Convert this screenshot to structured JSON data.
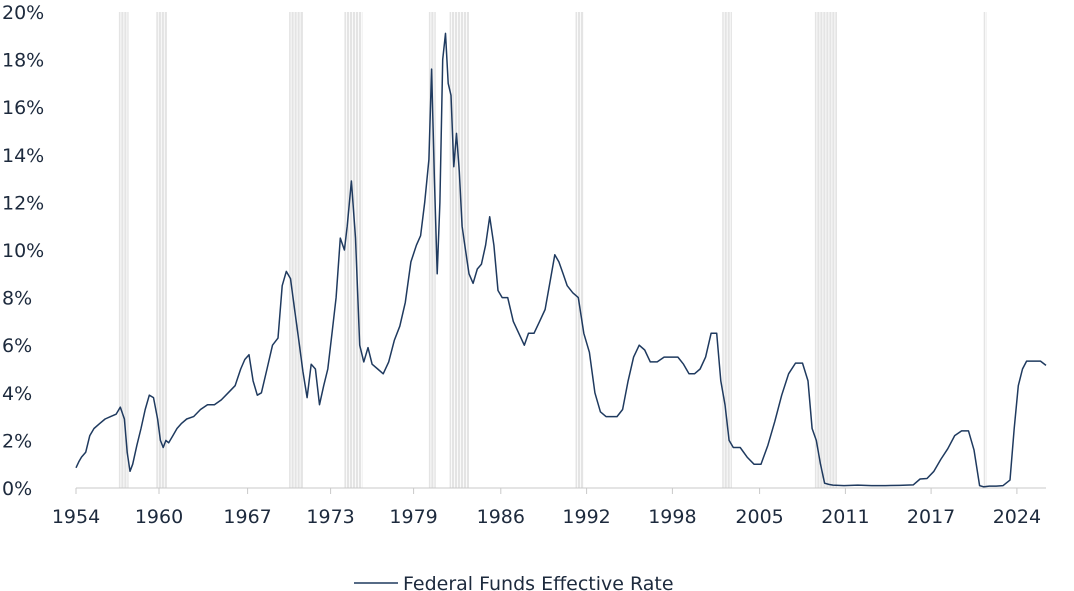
{
  "chart_data": {
    "type": "line",
    "title": "",
    "xlabel": "",
    "ylabel": "",
    "ylim": [
      0,
      20
    ],
    "xlim": [
      1954.5,
      2024.6
    ],
    "y_ticks": [
      0,
      2,
      4,
      6,
      8,
      10,
      12,
      14,
      16,
      18,
      20
    ],
    "y_tick_labels": [
      "0%",
      "2%",
      "4%",
      "6%",
      "8%",
      "10%",
      "12%",
      "14%",
      "16%",
      "18%",
      "20%"
    ],
    "x_tick_labels": [
      "1954",
      "1960",
      "1967",
      "1973",
      "1979",
      "1986",
      "1992",
      "1998",
      "2005",
      "2011",
      "2017",
      "2024"
    ],
    "x_tick_values": [
      1954.5,
      1960.5,
      1966.9,
      1972.9,
      1978.9,
      1985.2,
      1991.4,
      1997.6,
      2003.9,
      2010.1,
      2016.3,
      2022.5
    ],
    "recessions": [
      [
        1957.6,
        1958.3
      ],
      [
        1960.3,
        1961.1
      ],
      [
        1969.9,
        1970.9
      ],
      [
        1973.9,
        1975.2
      ],
      [
        1980.0,
        1980.5
      ],
      [
        1981.5,
        1982.9
      ],
      [
        1990.6,
        1991.2
      ],
      [
        2001.2,
        2001.9
      ],
      [
        2007.9,
        2009.5
      ],
      [
        2020.1,
        2020.3
      ]
    ],
    "legend": {
      "position": "bottom-center"
    },
    "series": [
      {
        "name": "Federal Funds Effective Rate",
        "color": "#1f3a5f",
        "x": [
          1954.5,
          1954.7,
          1954.9,
          1955.2,
          1955.5,
          1955.8,
          1956.2,
          1956.6,
          1957.0,
          1957.4,
          1957.7,
          1958.0,
          1958.2,
          1958.4,
          1958.6,
          1958.9,
          1959.2,
          1959.5,
          1959.8,
          1960.1,
          1960.4,
          1960.6,
          1960.8,
          1961.0,
          1961.2,
          1961.5,
          1961.8,
          1962.1,
          1962.5,
          1963.0,
          1963.5,
          1964.0,
          1964.5,
          1965.0,
          1965.5,
          1966.0,
          1966.4,
          1966.7,
          1967.0,
          1967.3,
          1967.6,
          1967.9,
          1968.3,
          1968.7,
          1969.1,
          1969.4,
          1969.7,
          1970.0,
          1970.3,
          1970.6,
          1970.9,
          1971.2,
          1971.5,
          1971.8,
          1972.1,
          1972.4,
          1972.7,
          1973.0,
          1973.3,
          1973.6,
          1973.9,
          1974.1,
          1974.4,
          1974.7,
          1975.0,
          1975.3,
          1975.6,
          1975.9,
          1976.3,
          1976.7,
          1977.1,
          1977.5,
          1977.9,
          1978.3,
          1978.7,
          1979.1,
          1979.4,
          1979.7,
          1980.0,
          1980.2,
          1980.4,
          1980.6,
          1980.8,
          1981.0,
          1981.2,
          1981.4,
          1981.6,
          1981.8,
          1982.0,
          1982.2,
          1982.4,
          1982.6,
          1982.9,
          1983.2,
          1983.5,
          1983.8,
          1984.1,
          1984.4,
          1984.7,
          1985.0,
          1985.3,
          1985.7,
          1986.1,
          1986.5,
          1986.9,
          1987.2,
          1987.6,
          1988.0,
          1988.4,
          1988.8,
          1989.1,
          1989.4,
          1989.7,
          1990.0,
          1990.4,
          1990.8,
          1991.2,
          1991.6,
          1992.0,
          1992.4,
          1992.8,
          1993.2,
          1993.6,
          1994.0,
          1994.4,
          1994.8,
          1995.2,
          1995.6,
          1996.0,
          1996.5,
          1997.0,
          1997.5,
          1998.0,
          1998.4,
          1998.8,
          1999.2,
          1999.6,
          2000.0,
          2000.4,
          2000.8,
          2001.1,
          2001.4,
          2001.7,
          2002.0,
          2002.5,
          2003.0,
          2003.5,
          2004.0,
          2004.5,
          2005.0,
          2005.5,
          2006.0,
          2006.5,
          2007.0,
          2007.4,
          2007.7,
          2008.0,
          2008.3,
          2008.6,
          2008.9,
          2009.2,
          2010.0,
          2011.0,
          2012.0,
          2013.0,
          2014.0,
          2015.0,
          2015.5,
          2016.0,
          2016.5,
          2017.0,
          2017.5,
          2018.0,
          2018.5,
          2019.0,
          2019.4,
          2019.8,
          2020.1,
          2020.2,
          2020.5,
          2021.0,
          2021.5,
          2022.0,
          2022.3,
          2022.6,
          2022.9,
          2023.2,
          2023.5,
          2023.8,
          2024.2,
          2024.6
        ],
        "values": [
          0.85,
          1.1,
          1.3,
          1.5,
          2.2,
          2.5,
          2.7,
          2.9,
          3.0,
          3.1,
          3.4,
          2.9,
          1.5,
          0.7,
          1.0,
          1.8,
          2.5,
          3.3,
          3.9,
          3.8,
          2.9,
          2.0,
          1.7,
          2.0,
          1.9,
          2.2,
          2.5,
          2.7,
          2.9,
          3.0,
          3.3,
          3.5,
          3.5,
          3.7,
          4.0,
          4.3,
          5.0,
          5.4,
          5.6,
          4.5,
          3.9,
          4.0,
          5.0,
          6.0,
          6.3,
          8.5,
          9.1,
          8.8,
          7.5,
          6.2,
          4.9,
          3.8,
          5.2,
          5.0,
          3.5,
          4.3,
          5.0,
          6.5,
          8.0,
          10.5,
          10.0,
          11.0,
          12.9,
          10.5,
          6.0,
          5.3,
          5.9,
          5.2,
          5.0,
          4.8,
          5.3,
          6.2,
          6.8,
          7.8,
          9.5,
          10.2,
          10.6,
          12.0,
          13.8,
          17.6,
          13.0,
          9.0,
          12.0,
          18.0,
          19.1,
          17.0,
          16.5,
          13.5,
          14.9,
          13.3,
          11.0,
          10.2,
          9.0,
          8.6,
          9.2,
          9.4,
          10.2,
          11.4,
          10.2,
          8.3,
          8.0,
          8.0,
          7.0,
          6.5,
          6.0,
          6.5,
          6.5,
          7.0,
          7.5,
          8.8,
          9.8,
          9.5,
          9.0,
          8.5,
          8.2,
          8.0,
          6.5,
          5.7,
          4.0,
          3.2,
          3.0,
          3.0,
          3.0,
          3.3,
          4.5,
          5.5,
          6.0,
          5.8,
          5.3,
          5.3,
          5.5,
          5.5,
          5.5,
          5.2,
          4.8,
          4.8,
          5.0,
          5.5,
          6.5,
          6.5,
          4.5,
          3.5,
          2.0,
          1.7,
          1.7,
          1.3,
          1.0,
          1.0,
          1.8,
          2.8,
          3.9,
          4.8,
          5.25,
          5.25,
          4.5,
          2.5,
          2.0,
          1.0,
          0.2,
          0.15,
          0.12,
          0.1,
          0.12,
          0.1,
          0.1,
          0.11,
          0.13,
          0.38,
          0.4,
          0.7,
          1.2,
          1.65,
          2.2,
          2.4,
          2.4,
          1.6,
          0.1,
          0.05,
          0.06,
          0.08,
          0.08,
          0.1,
          0.33,
          2.5,
          4.3,
          5.0,
          5.33,
          5.33,
          5.33,
          5.33,
          5.15
        ]
      }
    ]
  }
}
